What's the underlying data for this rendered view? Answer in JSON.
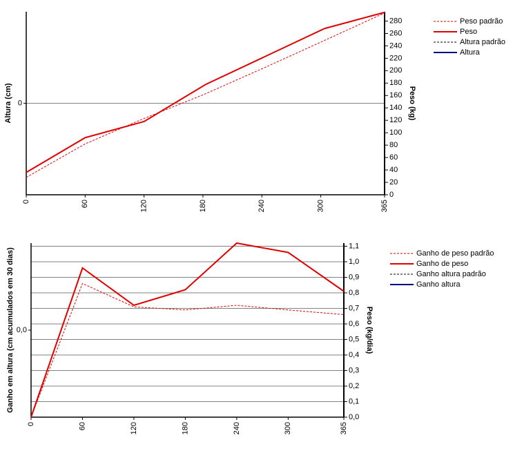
{
  "chart_data": [
    {
      "type": "line",
      "y_label": "Altura (cm)",
      "y2_label": "Peso (kg)",
      "xlim": [
        0,
        365
      ],
      "xticks": [
        0,
        60,
        120,
        180,
        240,
        300,
        365
      ],
      "ylim": [
        -1,
        1
      ],
      "yticks": [
        0
      ],
      "grid_axis": "y",
      "y2lim": [
        0,
        295
      ],
      "y2ticks": [
        0,
        20,
        40,
        60,
        80,
        100,
        120,
        140,
        160,
        180,
        200,
        220,
        240,
        260,
        280
      ],
      "series": [
        {
          "name": "Peso padrão",
          "color": "#e00000",
          "dashed": true,
          "axis": "y2",
          "x": [
            0,
            60,
            120,
            180,
            240,
            300,
            365
          ],
          "values": [
            28,
            82,
            123,
            161,
            203,
            246,
            293
          ]
        },
        {
          "name": "Peso",
          "color": "#e00000",
          "dashed": false,
          "axis": "y2",
          "x": [
            0,
            60,
            120,
            183,
            304,
            365
          ],
          "values": [
            36,
            92,
            118,
            178,
            268,
            294
          ]
        },
        {
          "name": "Altura padrão",
          "color": "#000000",
          "dashed": true,
          "axis": "y",
          "x": [],
          "values": []
        },
        {
          "name": "Altura",
          "color": "#000080",
          "dashed": false,
          "axis": "y",
          "x": [],
          "values": []
        }
      ]
    },
    {
      "type": "line",
      "y_label": "Ganho em altura (cm acumulados em 30 dias)",
      "y2_label": "Peso (kg/dia)",
      "xlim": [
        0,
        365
      ],
      "xticks": [
        0,
        60,
        120,
        180,
        240,
        300,
        365
      ],
      "ylim": [
        -1,
        1
      ],
      "yticks": [
        {
          "value": 0,
          "label": "0,0"
        }
      ],
      "grid_axis": "y2",
      "y2lim": [
        0,
        1.12
      ],
      "y2ticks": [
        {
          "value": 0,
          "label": "0,0"
        },
        {
          "value": 0.1,
          "label": "0,1"
        },
        {
          "value": 0.2,
          "label": "0,2"
        },
        {
          "value": 0.3,
          "label": "0,3"
        },
        {
          "value": 0.4,
          "label": "0,4"
        },
        {
          "value": 0.5,
          "label": "0,5"
        },
        {
          "value": 0.6,
          "label": "0,6"
        },
        {
          "value": 0.7,
          "label": "0,7"
        },
        {
          "value": 0.8,
          "label": "0,8"
        },
        {
          "value": 0.9,
          "label": "0,9"
        },
        {
          "value": 1.0,
          "label": "1,0"
        },
        {
          "value": 1.1,
          "label": "1,1"
        }
      ],
      "series": [
        {
          "name": "Ganho de peso padrão",
          "color": "#e00000",
          "dashed": true,
          "axis": "y2",
          "x": [
            0,
            60,
            120,
            180,
            240,
            300,
            365
          ],
          "values": [
            0,
            0.86,
            0.71,
            0.69,
            0.72,
            0.69,
            0.66
          ]
        },
        {
          "name": "Ganho de peso",
          "color": "#e00000",
          "dashed": false,
          "axis": "y2",
          "x": [
            0,
            60,
            120,
            180,
            240,
            300,
            365
          ],
          "values": [
            0,
            0.96,
            0.72,
            0.82,
            1.12,
            1.06,
            0.81
          ]
        },
        {
          "name": "Ganho altura padrão",
          "color": "#000000",
          "dashed": true,
          "axis": "y",
          "x": [],
          "values": []
        },
        {
          "name": "Ganho altura",
          "color": "#000080",
          "dashed": false,
          "axis": "y",
          "x": [],
          "values": []
        }
      ]
    }
  ]
}
